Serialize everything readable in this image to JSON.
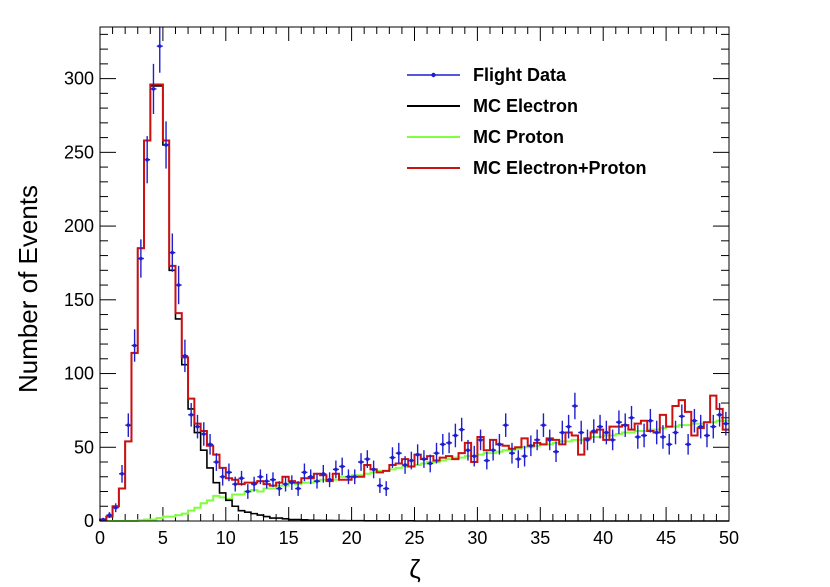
{
  "chart_data": {
    "type": "line",
    "title": "",
    "xlabel": "ζ",
    "ylabel": "Number of Events",
    "xlim": [
      0,
      50
    ],
    "ylim": [
      0,
      335
    ],
    "xticks": [
      0,
      5,
      10,
      15,
      20,
      25,
      30,
      35,
      40,
      45,
      50
    ],
    "yticks": [
      0,
      50,
      100,
      150,
      200,
      250,
      300
    ],
    "bin_width": 0.5,
    "legend_position": "top-right",
    "colors": {
      "flight_data": "#1f1fd0",
      "mc_electron": "#000000",
      "mc_proton": "#7fff3f",
      "mc_total": "#cc1111"
    },
    "series": [
      {
        "name": "Flight Data",
        "style": "points-with-error-bars",
        "x_centers": [
          0.25,
          0.75,
          1.25,
          1.75,
          2.25,
          2.75,
          3.25,
          3.75,
          4.25,
          4.75,
          5.25,
          5.75,
          6.25,
          6.75,
          7.25,
          7.75,
          8.25,
          8.75,
          9.25,
          9.75,
          10.25,
          10.75,
          11.25,
          11.75,
          12.25,
          12.75,
          13.25,
          13.75,
          14.25,
          14.75,
          15.25,
          15.75,
          16.25,
          16.75,
          17.25,
          17.75,
          18.25,
          18.75,
          19.25,
          19.75,
          20.25,
          20.75,
          21.25,
          21.75,
          22.25,
          22.75,
          23.25,
          23.75,
          24.25,
          24.75,
          25.25,
          25.75,
          26.25,
          26.75,
          27.25,
          27.75,
          28.25,
          28.75,
          29.25,
          29.75,
          30.25,
          30.75,
          31.25,
          31.75,
          32.25,
          32.75,
          33.25,
          33.75,
          34.25,
          34.75,
          35.25,
          35.75,
          36.25,
          36.75,
          37.25,
          37.75,
          38.25,
          38.75,
          39.25,
          39.75,
          40.25,
          40.75,
          41.25,
          41.75,
          42.25,
          42.75,
          43.25,
          43.75,
          44.25,
          44.75,
          45.25,
          45.75,
          46.25,
          46.75,
          47.25,
          47.75,
          48.25,
          48.75,
          49.25,
          49.75
        ],
        "values": [
          1,
          4,
          9,
          32,
          65,
          119,
          178,
          245,
          293,
          322,
          255,
          182,
          160,
          112,
          72,
          64,
          59,
          52,
          40,
          30,
          33,
          25,
          29,
          20,
          25,
          30,
          27,
          28,
          22,
          25,
          26,
          22,
          33,
          30,
          27,
          32,
          28,
          35,
          37,
          30,
          30,
          40,
          42,
          35,
          24,
          22,
          43,
          46,
          38,
          41,
          45,
          42,
          39,
          46,
          52,
          53,
          58,
          62,
          48,
          44,
          55,
          41,
          48,
          52,
          65,
          46,
          42,
          44,
          51,
          55,
          65,
          55,
          47,
          60,
          64,
          78,
          60,
          55,
          61,
          64,
          60,
          55,
          67,
          65,
          70,
          57,
          58,
          68,
          60,
          57,
          52,
          60,
          71,
          52,
          68,
          64,
          58,
          64,
          72,
          66
        ],
        "errors": [
          1,
          2,
          3,
          6,
          8,
          11,
          13,
          16,
          17,
          18,
          16,
          13,
          13,
          11,
          8,
          8,
          8,
          7,
          6,
          6,
          6,
          5,
          5,
          5,
          5,
          5,
          5,
          5,
          5,
          5,
          5,
          5,
          6,
          5,
          5,
          6,
          5,
          6,
          6,
          5,
          5,
          6,
          6,
          6,
          5,
          5,
          7,
          7,
          6,
          6,
          7,
          6,
          6,
          7,
          7,
          7,
          8,
          8,
          7,
          7,
          7,
          6,
          7,
          7,
          8,
          7,
          6,
          7,
          7,
          7,
          8,
          7,
          7,
          8,
          8,
          9,
          8,
          7,
          8,
          8,
          8,
          7,
          8,
          8,
          8,
          8,
          8,
          8,
          8,
          8,
          7,
          8,
          8,
          7,
          8,
          8,
          8,
          8,
          8,
          8
        ]
      },
      {
        "name": "MC Electron",
        "style": "step",
        "bin_edges_start": 0,
        "values": [
          1,
          3,
          10,
          22,
          54,
          114,
          185,
          258,
          295,
          295,
          255,
          170,
          137,
          106,
          76,
          60,
          48,
          36,
          26,
          19,
          14,
          10,
          7,
          6,
          5,
          4,
          3,
          2,
          2,
          1.5,
          1,
          1,
          0.8,
          0.6,
          0.5,
          0.4,
          0.4,
          0.3,
          0.3,
          0.2,
          0.2,
          0.2,
          0.1,
          0.1,
          0.1,
          0.1,
          0.1,
          0.1,
          0.1,
          0.1,
          0,
          0,
          0,
          0,
          0,
          0,
          0,
          0,
          0,
          0,
          0,
          0,
          0,
          0,
          0,
          0,
          0,
          0,
          0,
          0,
          0,
          0,
          0,
          0,
          0,
          0,
          0,
          0,
          0,
          0,
          0,
          0,
          0,
          0,
          0,
          0,
          0,
          0,
          0,
          0,
          0,
          0,
          0,
          0,
          0,
          0,
          0,
          0,
          0,
          0
        ]
      },
      {
        "name": "MC Proton",
        "style": "step",
        "bin_edges_start": 0,
        "values": [
          0,
          0,
          0,
          0,
          0,
          0,
          0.5,
          1,
          1,
          2,
          3,
          3,
          4,
          5,
          7,
          9,
          12,
          14,
          17,
          16,
          15,
          18,
          18,
          20,
          21,
          20,
          22,
          22,
          24,
          24,
          26,
          25,
          26,
          26,
          27,
          28,
          28,
          28,
          30,
          30,
          31,
          31,
          32,
          33,
          34,
          34,
          35,
          36,
          37,
          37,
          38,
          39,
          40,
          40,
          41,
          42,
          43,
          43,
          44,
          44,
          45,
          46,
          46,
          47,
          48,
          48,
          49,
          50,
          50,
          51,
          52,
          52,
          53,
          54,
          54,
          55,
          55,
          56,
          57,
          57,
          58,
          58,
          59,
          60,
          60,
          61,
          61,
          62,
          62,
          63,
          64,
          64,
          65,
          65,
          66,
          66,
          67,
          67,
          68,
          68
        ]
      },
      {
        "name": "MC Electron+Proton",
        "style": "step",
        "bin_edges_start": 0,
        "values": [
          1,
          3,
          10,
          22,
          54,
          114,
          185,
          258,
          296,
          296,
          258,
          173,
          141,
          111,
          83,
          66,
          61,
          51,
          45,
          36,
          29,
          28,
          25,
          26,
          26,
          27,
          25,
          24,
          26,
          30,
          27,
          26,
          29,
          29,
          32,
          31,
          27,
          32,
          28,
          28,
          30,
          30,
          38,
          35,
          33,
          34,
          38,
          39,
          42,
          37,
          45,
          42,
          44,
          41,
          43,
          44,
          42,
          46,
          53,
          40,
          57,
          48,
          55,
          52,
          51,
          49,
          50,
          56,
          51,
          53,
          52,
          56,
          55,
          52,
          60,
          58,
          45,
          56,
          60,
          62,
          55,
          64,
          64,
          65,
          62,
          66,
          68,
          61,
          60,
          72,
          64,
          78,
          82,
          74,
          58,
          63,
          67,
          85,
          76,
          62
        ]
      }
    ]
  }
}
